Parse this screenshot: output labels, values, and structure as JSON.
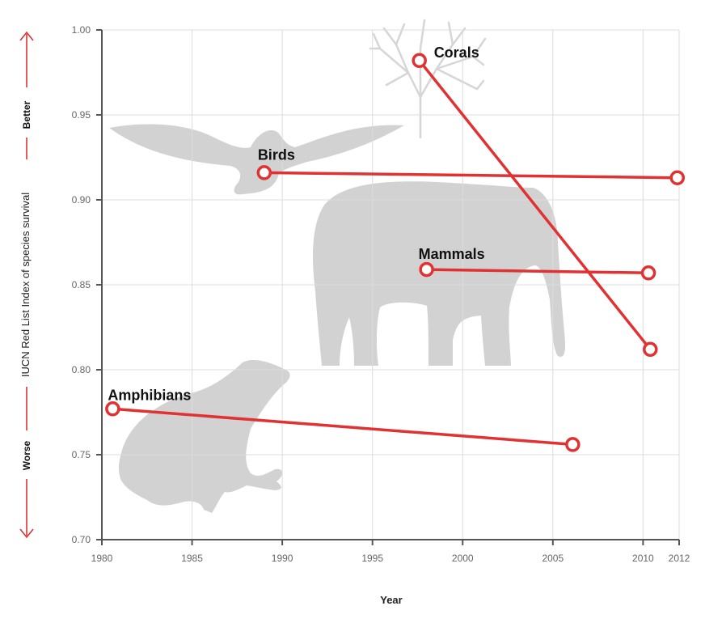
{
  "chart_data": {
    "type": "line",
    "title": "",
    "xlabel": "Year",
    "ylabel": "IUCN Red List Index of species survival",
    "xlim": [
      1980,
      2012
    ],
    "ylim": [
      0.7,
      1.0
    ],
    "x_ticks": [
      "1980",
      "1985",
      "1990",
      "1995",
      "2000",
      "2005",
      "2010",
      "2012"
    ],
    "y_ticks": [
      "1.00",
      "0.95",
      "0.90",
      "0.85",
      "0.80",
      "0.75",
      "0.70"
    ],
    "grid": true,
    "annotations": {
      "better": "Better",
      "worse": "Worse"
    },
    "series_color": "#e03232",
    "series": [
      {
        "name": "Corals",
        "x": [
          1997.6,
          2010.4
        ],
        "y": [
          0.982,
          0.812
        ]
      },
      {
        "name": "Birds",
        "x": [
          1989.0,
          2011.9
        ],
        "y": [
          0.916,
          0.913
        ]
      },
      {
        "name": "Mammals",
        "x": [
          1998.0,
          2010.3
        ],
        "y": [
          0.859,
          0.857
        ]
      },
      {
        "name": "Amphibians",
        "x": [
          1980.6,
          2006.1
        ],
        "y": [
          0.777,
          0.756
        ]
      }
    ],
    "decorations": [
      "coral-silhouette",
      "bird-silhouette",
      "elephant-silhouette",
      "frog-silhouette"
    ]
  }
}
